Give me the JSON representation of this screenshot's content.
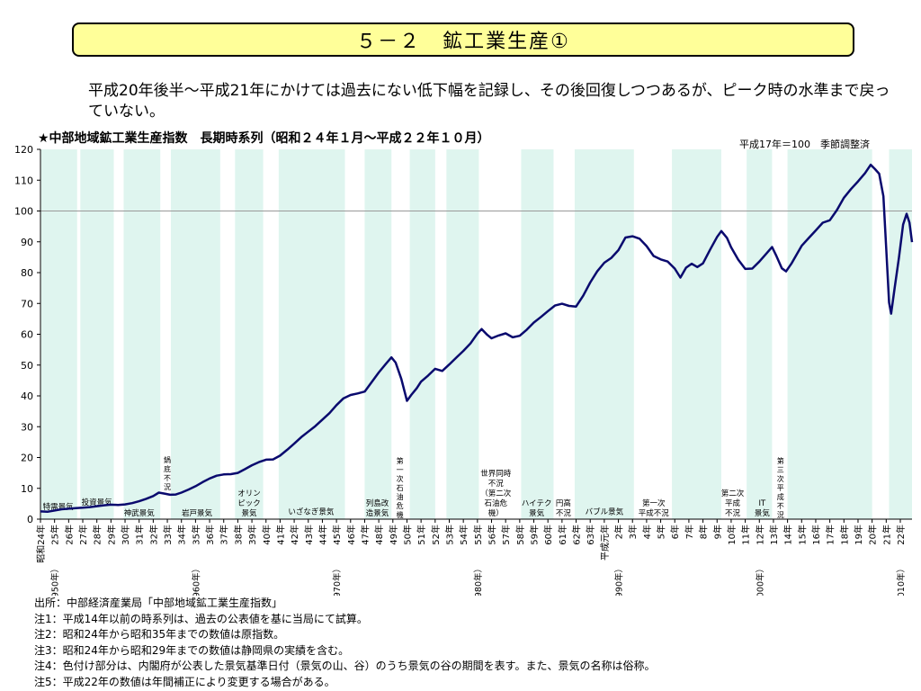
{
  "page_title": "５－２　鉱工業生産①",
  "summary": "平成20年後半～平成21年にかけては過去にない低下幅を記録し、その後回復しつつあるが、ピーク時の水準まで戻っていない。",
  "chart_data": {
    "type": "line",
    "title": "★中部地域鉱工業生産指数　長期時系列（昭和２４年１月～平成２２年１０月）",
    "note": "平成17年＝100　季節調整済",
    "ylim": [
      0,
      120
    ],
    "yticks": [
      0,
      10,
      20,
      30,
      40,
      50,
      60,
      70,
      80,
      90,
      100,
      110,
      120
    ],
    "reference_line": 100,
    "grid": false,
    "x_start": 1949,
    "x_end": 2010.83,
    "xticks": [
      {
        "year": 1949,
        "label": "昭和24年"
      },
      {
        "year": 1950,
        "label": "25年"
      },
      {
        "year": 1951,
        "label": "26年"
      },
      {
        "year": 1952,
        "label": "27年"
      },
      {
        "year": 1953,
        "label": "28年"
      },
      {
        "year": 1954,
        "label": "29年"
      },
      {
        "year": 1955,
        "label": "30年"
      },
      {
        "year": 1956,
        "label": "31年"
      },
      {
        "year": 1957,
        "label": "32年"
      },
      {
        "year": 1958,
        "label": "33年"
      },
      {
        "year": 1959,
        "label": "34年"
      },
      {
        "year": 1960,
        "label": "35年"
      },
      {
        "year": 1961,
        "label": "36年"
      },
      {
        "year": 1962,
        "label": "37年"
      },
      {
        "year": 1963,
        "label": "38年"
      },
      {
        "year": 1964,
        "label": "39年"
      },
      {
        "year": 1965,
        "label": "40年"
      },
      {
        "year": 1966,
        "label": "41年"
      },
      {
        "year": 1967,
        "label": "42年"
      },
      {
        "year": 1968,
        "label": "43年"
      },
      {
        "year": 1969,
        "label": "44年"
      },
      {
        "year": 1970,
        "label": "45年"
      },
      {
        "year": 1971,
        "label": "46年"
      },
      {
        "year": 1972,
        "label": "47年"
      },
      {
        "year": 1973,
        "label": "48年"
      },
      {
        "year": 1974,
        "label": "49年"
      },
      {
        "year": 1975,
        "label": "50年"
      },
      {
        "year": 1976,
        "label": "51年"
      },
      {
        "year": 1977,
        "label": "52年"
      },
      {
        "year": 1978,
        "label": "53年"
      },
      {
        "year": 1979,
        "label": "54年"
      },
      {
        "year": 1980,
        "label": "55年"
      },
      {
        "year": 1981,
        "label": "56年"
      },
      {
        "year": 1982,
        "label": "57年"
      },
      {
        "year": 1983,
        "label": "58年"
      },
      {
        "year": 1984,
        "label": "59年"
      },
      {
        "year": 1985,
        "label": "60年"
      },
      {
        "year": 1986,
        "label": "61年"
      },
      {
        "year": 1987,
        "label": "62年"
      },
      {
        "year": 1988,
        "label": "63年"
      },
      {
        "year": 1989,
        "label": "平成元年"
      },
      {
        "year": 1990,
        "label": "2年"
      },
      {
        "year": 1991,
        "label": "3年"
      },
      {
        "year": 1992,
        "label": "4年"
      },
      {
        "year": 1993,
        "label": "5年"
      },
      {
        "year": 1994,
        "label": "6年"
      },
      {
        "year": 1995,
        "label": "7年"
      },
      {
        "year": 1996,
        "label": "8年"
      },
      {
        "year": 1997,
        "label": "9年"
      },
      {
        "year": 1998,
        "label": "10年"
      },
      {
        "year": 1999,
        "label": "11年"
      },
      {
        "year": 2000,
        "label": "12年"
      },
      {
        "year": 2001,
        "label": "13年"
      },
      {
        "year": 2002,
        "label": "14年"
      },
      {
        "year": 2003,
        "label": "15年"
      },
      {
        "year": 2004,
        "label": "16年"
      },
      {
        "year": 2005,
        "label": "17年"
      },
      {
        "year": 2006,
        "label": "18年"
      },
      {
        "year": 2007,
        "label": "19年"
      },
      {
        "year": 2008,
        "label": "20年"
      },
      {
        "year": 2009,
        "label": "21年"
      },
      {
        "year": 2010,
        "label": "22年"
      }
    ],
    "decade_labels": [
      {
        "year": 1950,
        "label": "（1950年）"
      },
      {
        "year": 1960,
        "label": "（1960年）"
      },
      {
        "year": 1970,
        "label": "（1970年）"
      },
      {
        "year": 1980,
        "label": "（1980年）"
      },
      {
        "year": 1990,
        "label": "（1990年）"
      },
      {
        "year": 2000,
        "label": "（2000年）"
      },
      {
        "year": 2010,
        "label": "（2010年）"
      }
    ],
    "shaded_periods": [
      [
        1949.05,
        1951.6
      ],
      [
        1951.83,
        1954.2
      ],
      [
        1954.9,
        1957.5
      ],
      [
        1958.25,
        1961.75
      ],
      [
        1962.8,
        1964.8
      ],
      [
        1965.9,
        1970.6
      ],
      [
        1972.0,
        1973.9
      ],
      [
        1975.2,
        1977.0
      ],
      [
        1977.8,
        1980.1
      ],
      [
        1983.1,
        1985.4
      ],
      [
        1986.9,
        1991.1
      ],
      [
        1993.8,
        1997.3
      ],
      [
        1999.1,
        2000.9
      ],
      [
        2002.0,
        2008.0
      ],
      [
        2009.2,
        2010.83
      ]
    ],
    "annotations": [
      {
        "year": 1950.25,
        "value": 2,
        "text": "特需景気",
        "vertical": false
      },
      {
        "year": 1953.0,
        "value": 3.5,
        "text": "投資景気",
        "vertical": false
      },
      {
        "year": 1956.0,
        "value": 0,
        "text": "神武景気",
        "vertical": false
      },
      {
        "year": 1958.0,
        "value": 9,
        "text": "鍋底不況",
        "vertical": true
      },
      {
        "year": 1960.1,
        "value": 0,
        "text": "岩戸景気",
        "vertical": false
      },
      {
        "year": 1963.8,
        "value": 0,
        "text": "オリンピック景気",
        "vertical": false,
        "lines": [
          "オリン",
          "ピック",
          "景気"
        ]
      },
      {
        "year": 1968.2,
        "value": 0.5,
        "text": "いざなぎ景気",
        "vertical": false
      },
      {
        "year": 1972.9,
        "value": 0,
        "text": "列島改造景気",
        "vertical": false,
        "lines": [
          "列島改",
          "造景気"
        ]
      },
      {
        "year": 1974.5,
        "value": 0,
        "text": "第一次石油危機",
        "vertical": true
      },
      {
        "year": 1981.3,
        "value": 0,
        "text": "世界同時不況（第二次石油危機）",
        "vertical": false,
        "lines": [
          "世界同時",
          "不況",
          "（第二次",
          "石油危",
          "機）"
        ]
      },
      {
        "year": 1984.2,
        "value": 0,
        "text": "ハイテク景気",
        "vertical": false,
        "lines": [
          "ハイテク",
          "景気"
        ]
      },
      {
        "year": 1986.1,
        "value": 0,
        "text": "円高不況",
        "vertical": false,
        "lines": [
          "円高",
          "不況"
        ]
      },
      {
        "year": 1989.0,
        "value": 0.5,
        "text": "バブル景気",
        "vertical": false
      },
      {
        "year": 1992.5,
        "value": 0,
        "text": "第一次平成不況",
        "vertical": false,
        "lines": [
          "第一次",
          "平成不況"
        ]
      },
      {
        "year": 1998.1,
        "value": 0,
        "text": "第二次平成不況",
        "vertical": false,
        "lines": [
          "第二次",
          "平成",
          "不況"
        ]
      },
      {
        "year": 2000.2,
        "value": 0,
        "text": "IT景気",
        "vertical": false,
        "lines": [
          "IT",
          "景気"
        ]
      },
      {
        "year": 2001.5,
        "value": 0,
        "text": "第三次平成不況",
        "vertical": true
      }
    ],
    "series": [
      {
        "values": [
          [
            1949.0,
            2.5
          ],
          [
            1949.5,
            2.4
          ],
          [
            1950.0,
            2.8
          ],
          [
            1950.5,
            3.2
          ],
          [
            1951.0,
            3.4
          ],
          [
            1951.5,
            3.6
          ],
          [
            1952.0,
            3.7
          ],
          [
            1952.5,
            3.9
          ],
          [
            1953.0,
            4.2
          ],
          [
            1953.5,
            4.5
          ],
          [
            1954.0,
            4.7
          ],
          [
            1954.5,
            4.6
          ],
          [
            1955.0,
            4.8
          ],
          [
            1955.5,
            5.2
          ],
          [
            1956.0,
            5.8
          ],
          [
            1956.5,
            6.6
          ],
          [
            1957.0,
            7.5
          ],
          [
            1957.4,
            8.6
          ],
          [
            1957.8,
            8.3
          ],
          [
            1958.2,
            7.9
          ],
          [
            1958.6,
            8.0
          ],
          [
            1959.0,
            8.6
          ],
          [
            1959.5,
            9.6
          ],
          [
            1960.0,
            10.7
          ],
          [
            1960.5,
            12.0
          ],
          [
            1961.0,
            13.2
          ],
          [
            1961.5,
            14.1
          ],
          [
            1962.0,
            14.5
          ],
          [
            1962.5,
            14.6
          ],
          [
            1963.0,
            15.0
          ],
          [
            1963.5,
            16.2
          ],
          [
            1964.0,
            17.5
          ],
          [
            1964.5,
            18.5
          ],
          [
            1965.0,
            19.3
          ],
          [
            1965.5,
            19.4
          ],
          [
            1966.0,
            20.6
          ],
          [
            1966.5,
            22.5
          ],
          [
            1967.0,
            24.5
          ],
          [
            1967.5,
            26.6
          ],
          [
            1968.0,
            28.4
          ],
          [
            1968.5,
            30.2
          ],
          [
            1969.0,
            32.3
          ],
          [
            1969.5,
            34.4
          ],
          [
            1970.0,
            37.0
          ],
          [
            1970.5,
            39.2
          ],
          [
            1971.0,
            40.3
          ],
          [
            1971.5,
            40.8
          ],
          [
            1972.0,
            41.4
          ],
          [
            1972.5,
            44.5
          ],
          [
            1973.0,
            47.6
          ],
          [
            1973.5,
            50.4
          ],
          [
            1973.9,
            52.5
          ],
          [
            1974.2,
            50.8
          ],
          [
            1974.6,
            45.5
          ],
          [
            1975.0,
            38.4
          ],
          [
            1975.3,
            40.3
          ],
          [
            1975.7,
            42.5
          ],
          [
            1976.0,
            44.6
          ],
          [
            1976.5,
            46.6
          ],
          [
            1977.0,
            48.8
          ],
          [
            1977.5,
            48.1
          ],
          [
            1978.0,
            50.2
          ],
          [
            1978.5,
            52.4
          ],
          [
            1979.0,
            54.6
          ],
          [
            1979.5,
            57.0
          ],
          [
            1980.0,
            60.2
          ],
          [
            1980.3,
            61.7
          ],
          [
            1980.7,
            59.8
          ],
          [
            1981.0,
            58.7
          ],
          [
            1981.5,
            59.6
          ],
          [
            1982.0,
            60.3
          ],
          [
            1982.5,
            59.0
          ],
          [
            1983.0,
            59.5
          ],
          [
            1983.5,
            61.5
          ],
          [
            1984.0,
            63.8
          ],
          [
            1984.5,
            65.6
          ],
          [
            1985.0,
            67.5
          ],
          [
            1985.5,
            69.3
          ],
          [
            1986.0,
            69.9
          ],
          [
            1986.5,
            69.2
          ],
          [
            1987.0,
            69.0
          ],
          [
            1987.5,
            72.5
          ],
          [
            1988.0,
            76.8
          ],
          [
            1988.5,
            80.4
          ],
          [
            1989.0,
            83.2
          ],
          [
            1989.5,
            84.8
          ],
          [
            1990.0,
            87.3
          ],
          [
            1990.5,
            91.4
          ],
          [
            1991.0,
            91.8
          ],
          [
            1991.5,
            91.0
          ],
          [
            1992.0,
            88.6
          ],
          [
            1992.5,
            85.4
          ],
          [
            1993.0,
            84.3
          ],
          [
            1993.5,
            83.6
          ],
          [
            1994.0,
            81.3
          ],
          [
            1994.4,
            78.4
          ],
          [
            1994.8,
            81.6
          ],
          [
            1995.2,
            82.9
          ],
          [
            1995.6,
            81.8
          ],
          [
            1996.0,
            83.0
          ],
          [
            1996.5,
            87.4
          ],
          [
            1997.0,
            91.6
          ],
          [
            1997.3,
            93.5
          ],
          [
            1997.7,
            91.3
          ],
          [
            1998.0,
            88.2
          ],
          [
            1998.5,
            84.2
          ],
          [
            1999.0,
            81.2
          ],
          [
            1999.5,
            81.3
          ],
          [
            2000.0,
            83.6
          ],
          [
            2000.5,
            86.2
          ],
          [
            2000.9,
            88.3
          ],
          [
            2001.2,
            85.5
          ],
          [
            2001.6,
            81.4
          ],
          [
            2001.9,
            80.4
          ],
          [
            2002.3,
            83.1
          ],
          [
            2002.7,
            86.3
          ],
          [
            2003.0,
            88.7
          ],
          [
            2003.5,
            91.2
          ],
          [
            2004.0,
            93.7
          ],
          [
            2004.5,
            96.2
          ],
          [
            2005.0,
            97.0
          ],
          [
            2005.5,
            100.3
          ],
          [
            2006.0,
            104.3
          ],
          [
            2006.5,
            107.1
          ],
          [
            2007.0,
            109.6
          ],
          [
            2007.5,
            112.3
          ],
          [
            2007.9,
            115.0
          ],
          [
            2008.2,
            113.6
          ],
          [
            2008.5,
            112.1
          ],
          [
            2008.8,
            104.8
          ],
          [
            2009.0,
            88.0
          ],
          [
            2009.2,
            70.3
          ],
          [
            2009.35,
            66.7
          ],
          [
            2009.6,
            75.0
          ],
          [
            2009.9,
            84.7
          ],
          [
            2010.2,
            95.6
          ],
          [
            2010.45,
            99.1
          ],
          [
            2010.65,
            96.2
          ],
          [
            2010.83,
            89.9
          ]
        ]
      }
    ]
  },
  "notes": [
    "出所：中部経済産業局「中部地域鉱工業生産指数」",
    "注1：平成14年以前の時系列は、過去の公表値を基に当局にて試算。",
    "注2：昭和24年から昭和35年までの数値は原指数。",
    "注3：昭和24年から昭和29年までの数値は静岡県の実績を含む。",
    "注4：色付け部分は、内閣府が公表した景気基準日付（景気の山、谷）のうち景気の谷の期間を表す。また、景気の名称は俗称。",
    "注5：平成22年の数値は年間補正により変更する場合がある。"
  ],
  "colors": {
    "line": "#0a0a6e",
    "shade": "#dff5ef",
    "title_bg": "#ffff99",
    "reference": "#999999"
  }
}
